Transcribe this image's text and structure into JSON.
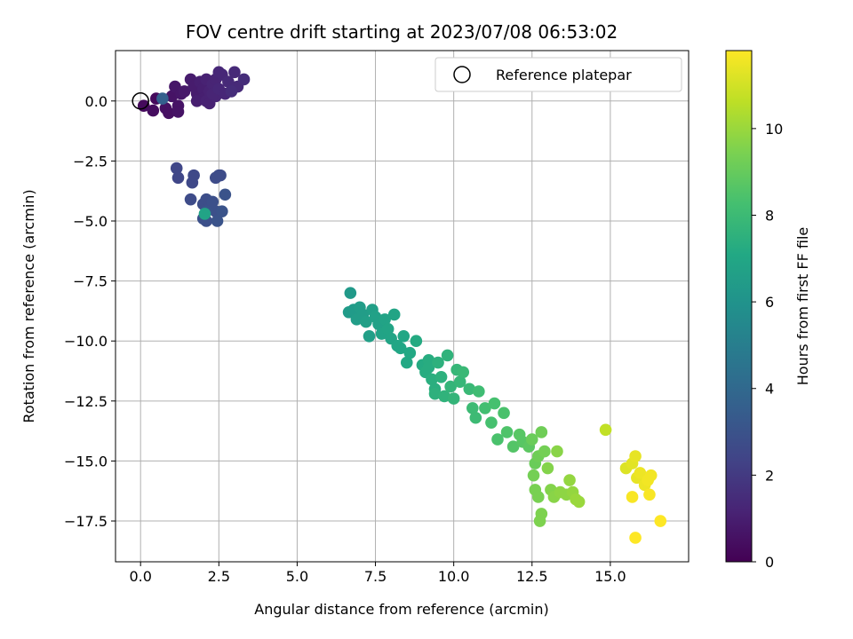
{
  "chart_data": {
    "type": "scatter",
    "title": "FOV centre drift starting at 2023/07/08 06:53:02",
    "xlabel": "Angular distance from reference (arcmin)",
    "ylabel": "Rotation from reference (arcmin)",
    "xlim": [
      -0.8,
      17.5
    ],
    "ylim": [
      -19.2,
      2.1
    ],
    "xticks": [
      0.0,
      2.5,
      5.0,
      7.5,
      10.0,
      12.5,
      15.0
    ],
    "xtick_labels": [
      "0.0",
      "2.5",
      "5.0",
      "7.5",
      "10.0",
      "12.5",
      "15.0"
    ],
    "yticks": [
      0.0,
      -2.5,
      -5.0,
      -7.5,
      -10.0,
      -12.5,
      -15.0,
      -17.5
    ],
    "ytick_labels": [
      "0.0",
      "−2.5",
      "−5.0",
      "−7.5",
      "−10.0",
      "−12.5",
      "−15.0",
      "−17.5"
    ],
    "grid": true,
    "legend": {
      "placement": "top-right",
      "entries": [
        "Reference platepar"
      ]
    },
    "reference_point": {
      "x": 0.0,
      "y": 0.0
    },
    "colorbar": {
      "label": "Hours from first FF file",
      "range": [
        0,
        11.8
      ],
      "ticks": [
        0,
        2,
        4,
        6,
        8,
        10
      ],
      "tick_labels": [
        "0",
        "2",
        "4",
        "6",
        "8",
        "10"
      ],
      "colormap": "viridis"
    },
    "points": [
      {
        "x": 0.1,
        "y": -0.2,
        "h": 0.3
      },
      {
        "x": 0.4,
        "y": -0.4,
        "h": 0.4
      },
      {
        "x": 0.5,
        "y": 0.1,
        "h": 0.3
      },
      {
        "x": 0.8,
        "y": -0.3,
        "h": 0.5
      },
      {
        "x": 0.9,
        "y": -0.5,
        "h": 0.5
      },
      {
        "x": 1.0,
        "y": 0.2,
        "h": 0.6
      },
      {
        "x": 1.1,
        "y": 0.6,
        "h": 0.7
      },
      {
        "x": 1.2,
        "y": -0.2,
        "h": 0.6
      },
      {
        "x": 1.2,
        "y": -0.45,
        "h": 0.6
      },
      {
        "x": 1.3,
        "y": 0.3,
        "h": 0.7
      },
      {
        "x": 1.4,
        "y": 0.4,
        "h": 0.8
      },
      {
        "x": 1.6,
        "y": 0.9,
        "h": 0.9
      },
      {
        "x": 1.8,
        "y": 0.3,
        "h": 0.9
      },
      {
        "x": 1.9,
        "y": 0.8,
        "h": 1.0
      },
      {
        "x": 2.0,
        "y": 0.5,
        "h": 1.0
      },
      {
        "x": 2.0,
        "y": 0.1,
        "h": 1.0
      },
      {
        "x": 2.1,
        "y": 0.9,
        "h": 1.1
      },
      {
        "x": 2.2,
        "y": 0.4,
        "h": 1.1
      },
      {
        "x": 2.3,
        "y": 0.7,
        "h": 1.2
      },
      {
        "x": 2.4,
        "y": 0.2,
        "h": 1.2
      },
      {
        "x": 2.4,
        "y": 0.9,
        "h": 1.2
      },
      {
        "x": 2.5,
        "y": 0.5,
        "h": 1.3
      },
      {
        "x": 2.6,
        "y": 1.1,
        "h": 1.3
      },
      {
        "x": 2.7,
        "y": 0.3,
        "h": 1.3
      },
      {
        "x": 1.8,
        "y": 0.0,
        "h": 1.0
      },
      {
        "x": 2.1,
        "y": 0.0,
        "h": 1.1
      },
      {
        "x": 2.2,
        "y": -0.1,
        "h": 1.1
      },
      {
        "x": 2.5,
        "y": 1.2,
        "h": 1.3
      },
      {
        "x": 2.8,
        "y": 0.8,
        "h": 1.4
      },
      {
        "x": 3.0,
        "y": 1.2,
        "h": 1.4
      },
      {
        "x": 3.1,
        "y": 0.6,
        "h": 1.4
      },
      {
        "x": 3.3,
        "y": 0.9,
        "h": 1.5
      },
      {
        "x": 2.9,
        "y": 0.4,
        "h": 1.5
      },
      {
        "x": 1.7,
        "y": 0.6,
        "h": 0.9
      },
      {
        "x": 2.3,
        "y": 0.3,
        "h": 1.2
      },
      {
        "x": 0.7,
        "y": 0.1,
        "h": 3.6
      },
      {
        "x": 1.15,
        "y": -2.8,
        "h": 2.5
      },
      {
        "x": 1.2,
        "y": -3.2,
        "h": 2.5
      },
      {
        "x": 1.65,
        "y": -3.4,
        "h": 2.6
      },
      {
        "x": 1.7,
        "y": -3.1,
        "h": 2.6
      },
      {
        "x": 1.6,
        "y": -4.1,
        "h": 2.7
      },
      {
        "x": 2.0,
        "y": -4.3,
        "h": 2.8
      },
      {
        "x": 2.1,
        "y": -4.1,
        "h": 2.8
      },
      {
        "x": 2.2,
        "y": -4.4,
        "h": 2.8
      },
      {
        "x": 2.3,
        "y": -4.2,
        "h": 2.9
      },
      {
        "x": 2.4,
        "y": -4.6,
        "h": 2.9
      },
      {
        "x": 2.5,
        "y": -3.1,
        "h": 2.7
      },
      {
        "x": 2.4,
        "y": -3.2,
        "h": 2.7
      },
      {
        "x": 2.55,
        "y": -3.1,
        "h": 2.7
      },
      {
        "x": 2.0,
        "y": -4.9,
        "h": 2.9
      },
      {
        "x": 2.1,
        "y": -5.0,
        "h": 2.9
      },
      {
        "x": 2.45,
        "y": -5.0,
        "h": 3.0
      },
      {
        "x": 2.6,
        "y": -4.6,
        "h": 3.0
      },
      {
        "x": 2.7,
        "y": -3.9,
        "h": 3.0
      },
      {
        "x": 2.1,
        "y": -4.6,
        "h": 3.0
      },
      {
        "x": 2.05,
        "y": -4.7,
        "h": 6.8
      },
      {
        "x": 6.7,
        "y": -8.0,
        "h": 6.3
      },
      {
        "x": 6.65,
        "y": -8.8,
        "h": 6.4
      },
      {
        "x": 6.8,
        "y": -8.7,
        "h": 6.4
      },
      {
        "x": 6.9,
        "y": -9.1,
        "h": 6.5
      },
      {
        "x": 7.0,
        "y": -8.6,
        "h": 6.5
      },
      {
        "x": 7.2,
        "y": -9.2,
        "h": 6.6
      },
      {
        "x": 7.3,
        "y": -9.8,
        "h": 6.6
      },
      {
        "x": 7.4,
        "y": -8.7,
        "h": 6.6
      },
      {
        "x": 7.5,
        "y": -9.0,
        "h": 6.7
      },
      {
        "x": 7.6,
        "y": -9.3,
        "h": 6.7
      },
      {
        "x": 7.7,
        "y": -9.7,
        "h": 6.8
      },
      {
        "x": 7.8,
        "y": -9.1,
        "h": 6.8
      },
      {
        "x": 7.9,
        "y": -9.5,
        "h": 6.9
      },
      {
        "x": 8.0,
        "y": -9.9,
        "h": 6.9
      },
      {
        "x": 8.1,
        "y": -8.9,
        "h": 6.9
      },
      {
        "x": 8.2,
        "y": -10.2,
        "h": 7.0
      },
      {
        "x": 8.4,
        "y": -9.8,
        "h": 7.0
      },
      {
        "x": 8.5,
        "y": -10.9,
        "h": 7.1
      },
      {
        "x": 8.6,
        "y": -10.5,
        "h": 7.1
      },
      {
        "x": 8.8,
        "y": -10.0,
        "h": 7.2
      },
      {
        "x": 9.0,
        "y": -11.0,
        "h": 7.2
      },
      {
        "x": 9.1,
        "y": -11.3,
        "h": 7.3
      },
      {
        "x": 9.2,
        "y": -10.8,
        "h": 7.3
      },
      {
        "x": 9.3,
        "y": -11.6,
        "h": 7.4
      },
      {
        "x": 9.4,
        "y": -12.0,
        "h": 7.4
      },
      {
        "x": 9.5,
        "y": -10.9,
        "h": 7.5
      },
      {
        "x": 9.6,
        "y": -11.5,
        "h": 7.5
      },
      {
        "x": 9.7,
        "y": -12.3,
        "h": 7.6
      },
      {
        "x": 9.8,
        "y": -10.6,
        "h": 7.6
      },
      {
        "x": 9.9,
        "y": -11.9,
        "h": 7.7
      },
      {
        "x": 10.0,
        "y": -12.4,
        "h": 7.7
      },
      {
        "x": 10.1,
        "y": -11.2,
        "h": 7.8
      },
      {
        "x": 10.2,
        "y": -11.7,
        "h": 7.8
      },
      {
        "x": 10.3,
        "y": -11.3,
        "h": 7.9
      },
      {
        "x": 10.5,
        "y": -12.0,
        "h": 7.9
      },
      {
        "x": 10.6,
        "y": -12.8,
        "h": 8.0
      },
      {
        "x": 10.7,
        "y": -13.2,
        "h": 8.0
      },
      {
        "x": 10.8,
        "y": -12.1,
        "h": 8.1
      },
      {
        "x": 11.0,
        "y": -12.8,
        "h": 8.2
      },
      {
        "x": 11.2,
        "y": -13.4,
        "h": 8.3
      },
      {
        "x": 11.3,
        "y": -12.6,
        "h": 8.3
      },
      {
        "x": 11.4,
        "y": -14.1,
        "h": 8.4
      },
      {
        "x": 11.6,
        "y": -13.0,
        "h": 8.4
      },
      {
        "x": 11.7,
        "y": -13.8,
        "h": 8.5
      },
      {
        "x": 11.9,
        "y": -14.4,
        "h": 8.6
      },
      {
        "x": 12.1,
        "y": -13.9,
        "h": 8.7
      },
      {
        "x": 12.2,
        "y": -14.2,
        "h": 8.7
      },
      {
        "x": 12.4,
        "y": -14.4,
        "h": 8.8
      },
      {
        "x": 9.2,
        "y": -11.1,
        "h": 7.3
      },
      {
        "x": 9.4,
        "y": -12.2,
        "h": 7.5
      },
      {
        "x": 8.3,
        "y": -10.3,
        "h": 7.0
      },
      {
        "x": 7.1,
        "y": -8.9,
        "h": 6.5
      },
      {
        "x": 12.5,
        "y": -14.1,
        "h": 9.1
      },
      {
        "x": 12.6,
        "y": -15.1,
        "h": 9.1
      },
      {
        "x": 12.7,
        "y": -14.8,
        "h": 9.2
      },
      {
        "x": 12.8,
        "y": -13.8,
        "h": 9.2
      },
      {
        "x": 12.9,
        "y": -14.6,
        "h": 9.3
      },
      {
        "x": 12.55,
        "y": -15.6,
        "h": 9.3
      },
      {
        "x": 12.6,
        "y": -16.2,
        "h": 9.4
      },
      {
        "x": 12.7,
        "y": -16.5,
        "h": 9.4
      },
      {
        "x": 12.8,
        "y": -17.2,
        "h": 9.5
      },
      {
        "x": 12.75,
        "y": -17.5,
        "h": 9.5
      },
      {
        "x": 13.0,
        "y": -15.3,
        "h": 9.6
      },
      {
        "x": 13.1,
        "y": -16.2,
        "h": 9.6
      },
      {
        "x": 13.2,
        "y": -16.5,
        "h": 9.7
      },
      {
        "x": 13.3,
        "y": -14.6,
        "h": 9.7
      },
      {
        "x": 13.4,
        "y": -16.3,
        "h": 9.8
      },
      {
        "x": 13.6,
        "y": -16.4,
        "h": 9.8
      },
      {
        "x": 13.7,
        "y": -15.8,
        "h": 9.9
      },
      {
        "x": 13.8,
        "y": -16.3,
        "h": 9.9
      },
      {
        "x": 13.9,
        "y": -16.6,
        "h": 10.0
      },
      {
        "x": 14.0,
        "y": -16.7,
        "h": 10.0
      },
      {
        "x": 14.85,
        "y": -13.7,
        "h": 10.7
      },
      {
        "x": 15.5,
        "y": -15.3,
        "h": 11.2
      },
      {
        "x": 15.7,
        "y": -15.1,
        "h": 11.3
      },
      {
        "x": 15.8,
        "y": -14.8,
        "h": 11.4
      },
      {
        "x": 15.85,
        "y": -15.7,
        "h": 11.4
      },
      {
        "x": 15.95,
        "y": -15.5,
        "h": 11.5
      },
      {
        "x": 16.1,
        "y": -16.0,
        "h": 11.5
      },
      {
        "x": 16.2,
        "y": -15.8,
        "h": 11.6
      },
      {
        "x": 16.3,
        "y": -15.6,
        "h": 11.6
      },
      {
        "x": 16.25,
        "y": -16.4,
        "h": 11.7
      },
      {
        "x": 15.7,
        "y": -16.5,
        "h": 11.7
      },
      {
        "x": 15.8,
        "y": -18.2,
        "h": 11.8
      },
      {
        "x": 16.6,
        "y": -17.5,
        "h": 11.8
      }
    ]
  }
}
